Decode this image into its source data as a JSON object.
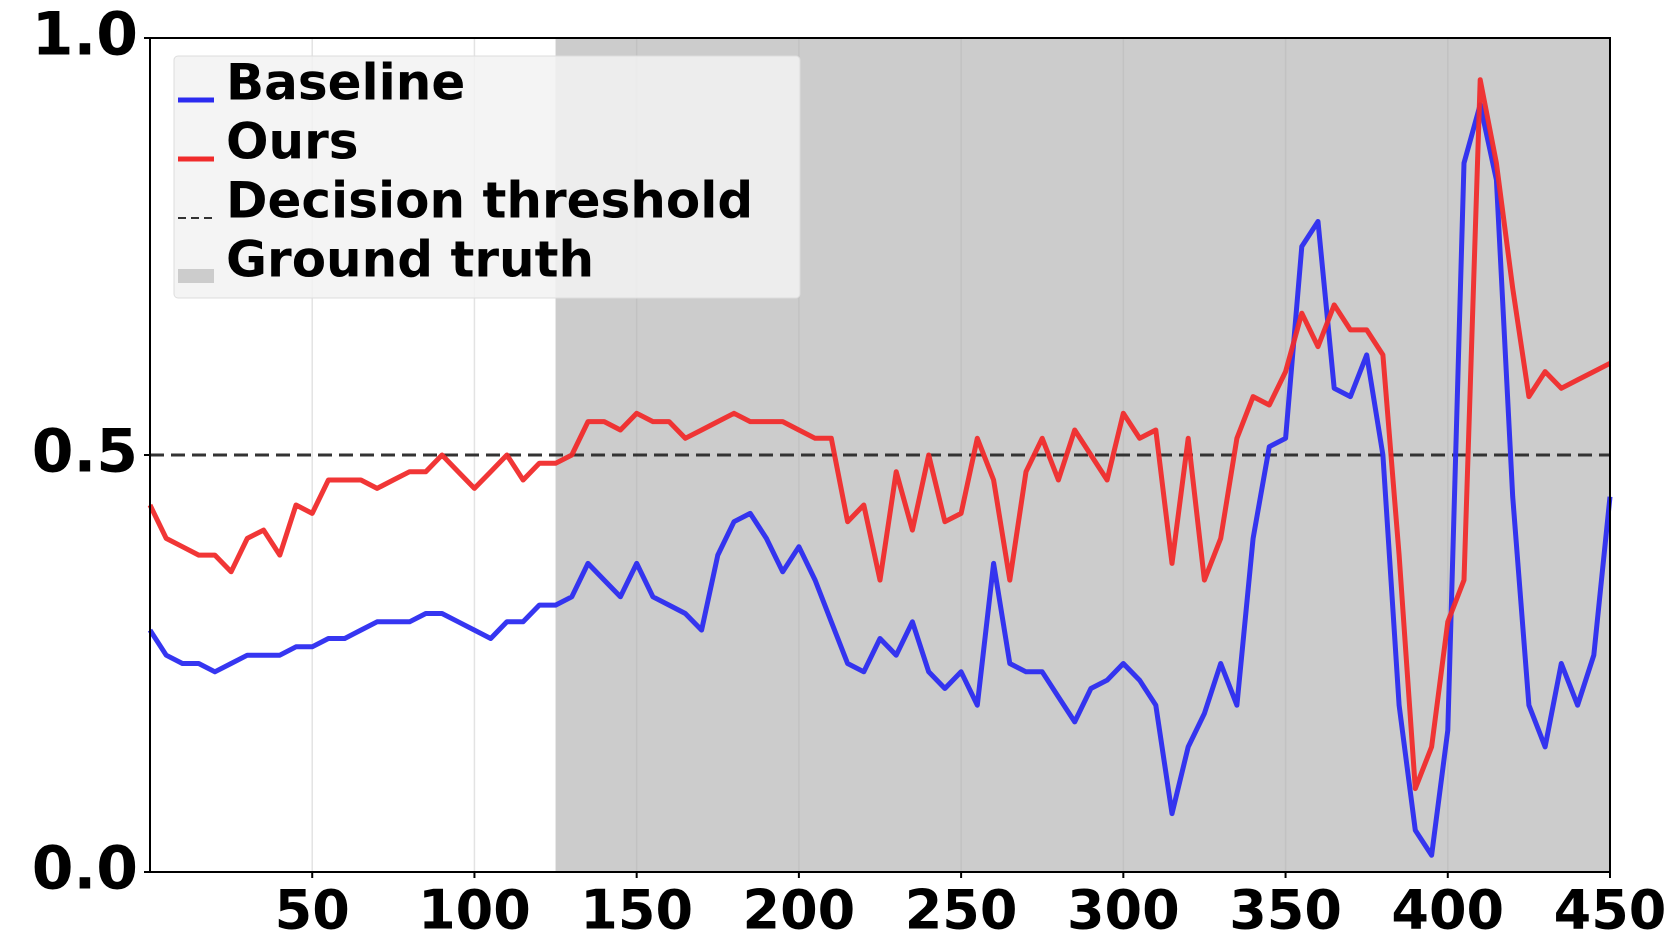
{
  "chart_data": {
    "type": "line",
    "x": [
      0,
      5,
      10,
      15,
      20,
      25,
      30,
      35,
      40,
      45,
      50,
      55,
      60,
      65,
      70,
      75,
      80,
      85,
      90,
      95,
      100,
      105,
      110,
      115,
      120,
      125,
      130,
      135,
      140,
      145,
      150,
      155,
      160,
      165,
      170,
      175,
      180,
      185,
      190,
      195,
      200,
      205,
      210,
      215,
      220,
      225,
      230,
      235,
      240,
      245,
      250,
      255,
      260,
      265,
      270,
      275,
      280,
      285,
      290,
      295,
      300,
      305,
      310,
      315,
      320,
      325,
      330,
      335,
      340,
      345,
      350,
      355,
      360,
      365,
      370,
      375,
      380,
      385,
      390,
      395,
      400,
      405,
      410,
      415,
      420,
      425,
      430,
      435,
      440,
      445,
      450
    ],
    "series": [
      {
        "name": "Baseline",
        "color": "#2b2bf0",
        "values": [
          0.29,
          0.26,
          0.25,
          0.25,
          0.24,
          0.25,
          0.26,
          0.26,
          0.26,
          0.27,
          0.27,
          0.28,
          0.28,
          0.29,
          0.3,
          0.3,
          0.3,
          0.31,
          0.31,
          0.3,
          0.29,
          0.28,
          0.3,
          0.3,
          0.32,
          0.32,
          0.33,
          0.37,
          0.35,
          0.33,
          0.37,
          0.33,
          0.32,
          0.31,
          0.29,
          0.38,
          0.42,
          0.43,
          0.4,
          0.36,
          0.39,
          0.35,
          0.3,
          0.25,
          0.24,
          0.28,
          0.26,
          0.3,
          0.24,
          0.22,
          0.24,
          0.2,
          0.37,
          0.25,
          0.24,
          0.24,
          0.21,
          0.18,
          0.22,
          0.23,
          0.25,
          0.23,
          0.2,
          0.07,
          0.15,
          0.19,
          0.25,
          0.2,
          0.4,
          0.51,
          0.52,
          0.75,
          0.78,
          0.58,
          0.57,
          0.62,
          0.5,
          0.2,
          0.05,
          0.02,
          0.17,
          0.85,
          0.92,
          0.83,
          0.45,
          0.2,
          0.15,
          0.25,
          0.2,
          0.26,
          0.45
        ]
      },
      {
        "name": "Ours",
        "color": "#f02b2b",
        "values": [
          0.44,
          0.4,
          0.39,
          0.38,
          0.38,
          0.36,
          0.4,
          0.41,
          0.38,
          0.44,
          0.43,
          0.47,
          0.47,
          0.47,
          0.46,
          0.47,
          0.48,
          0.48,
          0.5,
          0.48,
          0.46,
          0.48,
          0.5,
          0.47,
          0.49,
          0.49,
          0.5,
          0.54,
          0.54,
          0.53,
          0.55,
          0.54,
          0.54,
          0.52,
          0.53,
          0.54,
          0.55,
          0.54,
          0.54,
          0.54,
          0.53,
          0.52,
          0.52,
          0.42,
          0.44,
          0.35,
          0.48,
          0.41,
          0.5,
          0.42,
          0.43,
          0.52,
          0.47,
          0.35,
          0.48,
          0.52,
          0.47,
          0.53,
          0.5,
          0.47,
          0.55,
          0.52,
          0.53,
          0.37,
          0.52,
          0.35,
          0.4,
          0.52,
          0.57,
          0.56,
          0.6,
          0.67,
          0.63,
          0.68,
          0.65,
          0.65,
          0.62,
          0.38,
          0.1,
          0.15,
          0.3,
          0.35,
          0.95,
          0.85,
          0.7,
          0.57,
          0.6,
          0.58,
          0.59,
          0.6,
          0.61
        ]
      }
    ],
    "threshold": {
      "name": "Decision threshold",
      "value": 0.5,
      "color": "#333333"
    },
    "span": {
      "name": "Ground truth",
      "start": 125,
      "end": 450,
      "color": "#cccccc"
    },
    "xlim": [
      0,
      450
    ],
    "xticks": [
      50,
      100,
      150,
      200,
      250,
      300,
      350,
      400,
      450
    ],
    "ylim": [
      0,
      1
    ],
    "yticks": [
      {
        "value": 0,
        "label": "0.0"
      },
      {
        "value": 0.5,
        "label": "0.5"
      },
      {
        "value": 1,
        "label": "1.0"
      }
    ],
    "grid": "x",
    "legend": "upper-left"
  }
}
